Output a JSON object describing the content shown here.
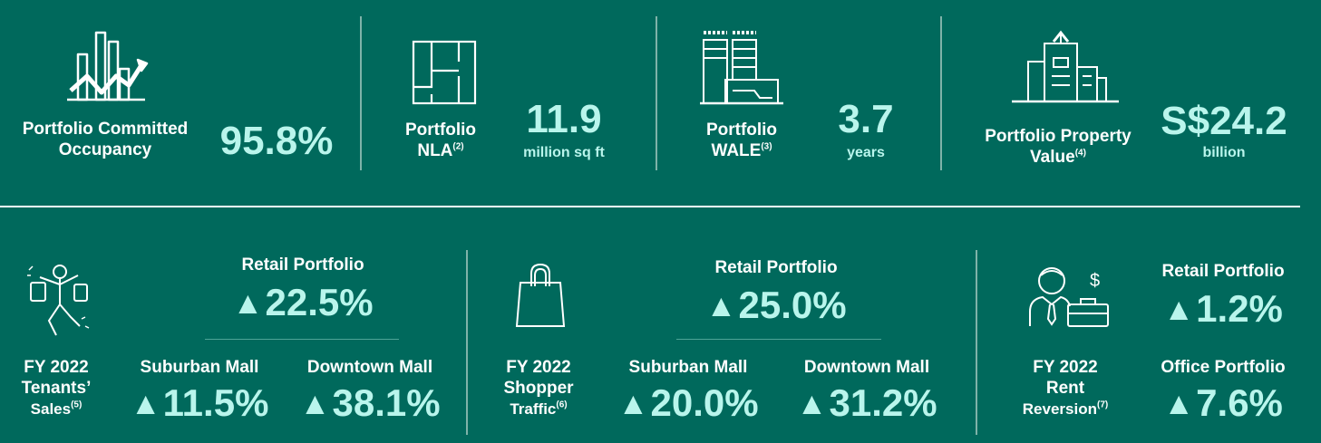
{
  "top": {
    "occupancy": {
      "label_1": "Portfolio Committed",
      "label_2": "Occupancy",
      "value": "95.8%",
      "icon": "bar-chart-trend-icon"
    },
    "nla": {
      "label_1": "Portfolio",
      "label_2": "NLA",
      "sup": "(2)",
      "value": "11.9",
      "unit": "million sq ft",
      "icon": "floor-plan-icon"
    },
    "wale": {
      "label_1": "Portfolio",
      "label_2": "WALE",
      "sup": "(3)",
      "value": "3.7",
      "unit": "years",
      "icon": "buildings-icon"
    },
    "value": {
      "label_1": "Portfolio Property",
      "label_2": "Value",
      "sup": "(4)",
      "value": "S$24.2",
      "unit": "billion",
      "icon": "skyline-icon"
    }
  },
  "bottom": {
    "arrow": "▲",
    "sales": {
      "label_1": "FY 2022",
      "label_2": "Tenants’",
      "label_3": "Sales",
      "sup": "(5)",
      "retail_label": "Retail Portfolio",
      "retail_value": "22.5%",
      "suburban_label": "Suburban Mall",
      "suburban_value": "11.5%",
      "downtown_label": "Downtown Mall",
      "downtown_value": "38.1%",
      "icon": "shopper-icon"
    },
    "traffic": {
      "label_1": "FY 2022",
      "label_2": "Shopper",
      "label_3": "Traffic",
      "sup": "(6)",
      "retail_label": "Retail Portfolio",
      "retail_value": "25.0%",
      "suburban_label": "Suburban Mall",
      "suburban_value": "20.0%",
      "downtown_label": "Downtown Mall",
      "downtown_value": "31.2%",
      "icon": "shopping-bag-icon"
    },
    "rent": {
      "label_1": "FY 2022",
      "label_2": "Rent",
      "label_3": "Reversion",
      "sup": "(7)",
      "retail_label": "Retail Portfolio",
      "retail_value": "1.2%",
      "office_label": "Office Portfolio",
      "office_value": "7.6%",
      "icon": "businessman-icon"
    }
  }
}
